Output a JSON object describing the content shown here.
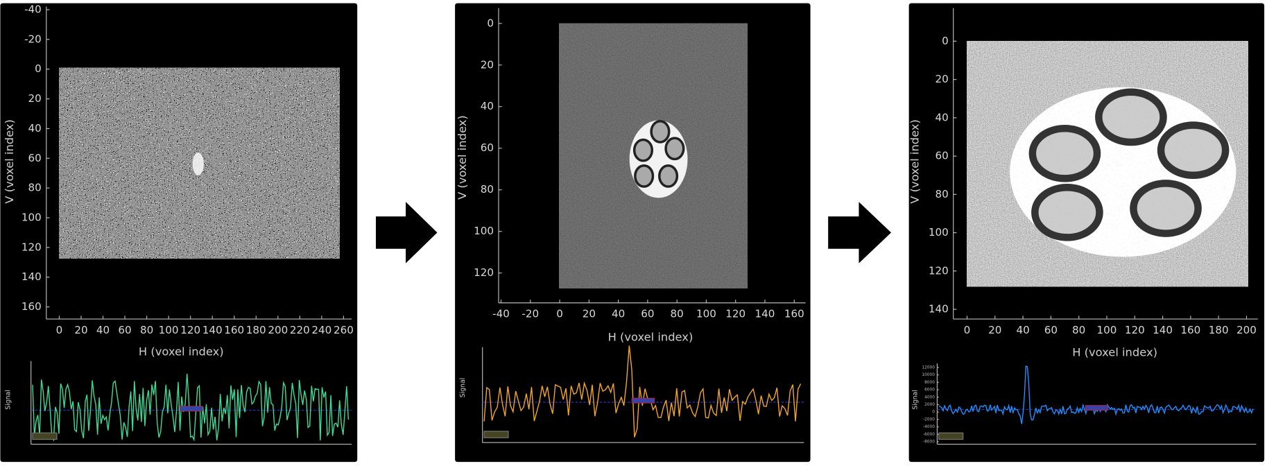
{
  "panels": [
    {
      "v_axis": {
        "label": "V (voxel index)",
        "ticks": [
          -40,
          -20,
          0,
          20,
          40,
          60,
          80,
          100,
          120,
          140,
          160
        ]
      },
      "h_axis": {
        "label": "H (voxel index)",
        "ticks": [
          0,
          20,
          40,
          60,
          80,
          100,
          120,
          140,
          160,
          180,
          200,
          220,
          240,
          260
        ]
      },
      "signal": {
        "label": "Signal",
        "color": "#3ddc97"
      }
    },
    {
      "v_axis": {
        "label": "V (voxel index)",
        "ticks": [
          0,
          20,
          40,
          60,
          80,
          100,
          120
        ]
      },
      "h_axis": {
        "label": "H (voxel index)",
        "ticks": [
          -40,
          -20,
          0,
          20,
          40,
          60,
          80,
          100,
          120,
          140,
          160
        ]
      },
      "signal": {
        "label": "Signal",
        "color": "#f5a623"
      }
    },
    {
      "v_axis": {
        "label": "V (voxel index)",
        "ticks": [
          0,
          20,
          40,
          60,
          80,
          100,
          120,
          140
        ]
      },
      "h_axis": {
        "label": "H (voxel index)",
        "ticks": [
          0,
          20,
          40,
          60,
          80,
          100,
          120,
          140,
          160,
          180,
          200
        ]
      },
      "signal": {
        "label": "Signal",
        "color": "#1e90ff",
        "yticks": [
          12000,
          10000,
          8000,
          6000,
          4000,
          2000,
          0,
          -2000,
          -4000,
          -6000,
          -8000
        ]
      }
    }
  ]
}
